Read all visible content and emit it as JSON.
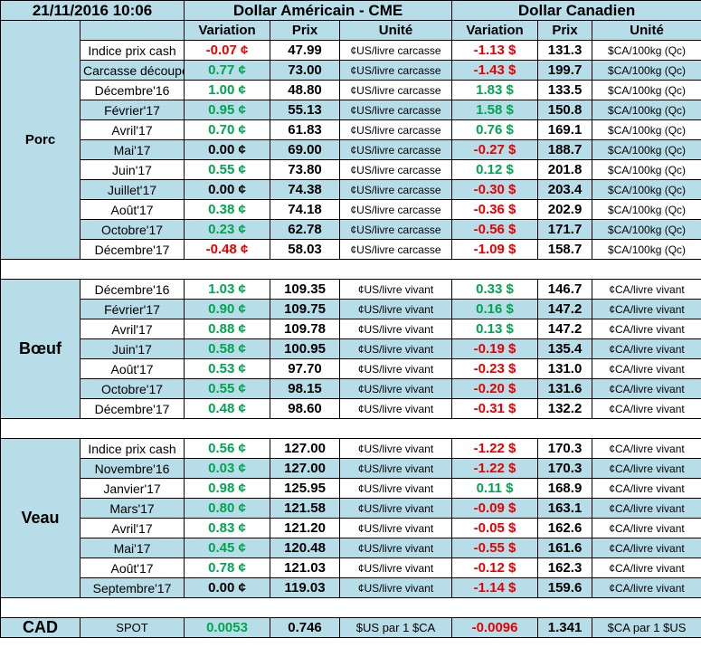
{
  "header": {
    "date": "21/11/2016 10:06",
    "us_title": "Dollar Américain - CME",
    "ca_title": "Dollar Canadien",
    "col_variation": "Variation",
    "col_prix": "Prix",
    "col_unite": "Unité"
  },
  "colors": {
    "band": "#b7dde8",
    "positive": "#00a550",
    "negative": "#e60000"
  },
  "groups": [
    {
      "name": "Porc",
      "rows": [
        {
          "label": "Indice prix cash",
          "us_var": "-0.07 ¢",
          "us_price": "47.99",
          "us_unit": "¢US/livre carcasse",
          "ca_var": "-1.13 $",
          "ca_price": "131.3",
          "ca_unit": "$CA/100kg (Qc)"
        },
        {
          "label": "Carcasse découpée",
          "us_var": "0.77 ¢",
          "us_price": "73.00",
          "us_unit": "¢US/livre carcasse",
          "ca_var": "-1.43 $",
          "ca_price": "199.7",
          "ca_unit": "$CA/100kg (Qc)"
        },
        {
          "label": "Décembre'16",
          "us_var": "1.00 ¢",
          "us_price": "48.80",
          "us_unit": "¢US/livre carcasse",
          "ca_var": "1.83 $",
          "ca_price": "133.5",
          "ca_unit": "$CA/100kg (Qc)"
        },
        {
          "label": "Février'17",
          "us_var": "0.95 ¢",
          "us_price": "55.13",
          "us_unit": "¢US/livre carcasse",
          "ca_var": "1.58 $",
          "ca_price": "150.8",
          "ca_unit": "$CA/100kg (Qc)"
        },
        {
          "label": "Avril'17",
          "us_var": "0.70 ¢",
          "us_price": "61.83",
          "us_unit": "¢US/livre carcasse",
          "ca_var": "0.76 $",
          "ca_price": "169.1",
          "ca_unit": "$CA/100kg (Qc)"
        },
        {
          "label": "Mai'17",
          "us_var": "0.00 ¢",
          "us_price": "69.00",
          "us_unit": "¢US/livre carcasse",
          "ca_var": "-0.27 $",
          "ca_price": "188.7",
          "ca_unit": "$CA/100kg (Qc)"
        },
        {
          "label": "Juin'17",
          "us_var": "0.55 ¢",
          "us_price": "73.80",
          "us_unit": "¢US/livre carcasse",
          "ca_var": "0.12 $",
          "ca_price": "201.8",
          "ca_unit": "$CA/100kg (Qc)"
        },
        {
          "label": "Juillet'17",
          "us_var": "0.00 ¢",
          "us_price": "74.38",
          "us_unit": "¢US/livre carcasse",
          "ca_var": "-0.30 $",
          "ca_price": "203.4",
          "ca_unit": "$CA/100kg (Qc)"
        },
        {
          "label": "Août'17",
          "us_var": "0.38 ¢",
          "us_price": "74.18",
          "us_unit": "¢US/livre carcasse",
          "ca_var": "-0.36 $",
          "ca_price": "202.9",
          "ca_unit": "$CA/100kg (Qc)"
        },
        {
          "label": "Octobre'17",
          "us_var": "0.23 ¢",
          "us_price": "62.78",
          "us_unit": "¢US/livre carcasse",
          "ca_var": "-0.56 $",
          "ca_price": "171.7",
          "ca_unit": "$CA/100kg (Qc)"
        },
        {
          "label": "Décembre'17",
          "us_var": "-0.48 ¢",
          "us_price": "58.03",
          "us_unit": "¢US/livre carcasse",
          "ca_var": "-1.09 $",
          "ca_price": "158.7",
          "ca_unit": "$CA/100kg (Qc)"
        }
      ]
    },
    {
      "name": "Bœuf",
      "rows": [
        {
          "label": "Décembre'16",
          "us_var": "1.03 ¢",
          "us_price": "109.35",
          "us_unit": "¢US/livre vivant",
          "ca_var": "0.33 $",
          "ca_price": "146.7",
          "ca_unit": "¢CA/livre vivant"
        },
        {
          "label": "Février'17",
          "us_var": "0.90 ¢",
          "us_price": "109.75",
          "us_unit": "¢US/livre vivant",
          "ca_var": "0.16 $",
          "ca_price": "147.2",
          "ca_unit": "¢CA/livre vivant"
        },
        {
          "label": "Avril'17",
          "us_var": "0.88 ¢",
          "us_price": "109.78",
          "us_unit": "¢US/livre vivant",
          "ca_var": "0.13 $",
          "ca_price": "147.2",
          "ca_unit": "¢CA/livre vivant"
        },
        {
          "label": "Juin'17",
          "us_var": "0.58 ¢",
          "us_price": "100.95",
          "us_unit": "¢US/livre vivant",
          "ca_var": "-0.19 $",
          "ca_price": "135.4",
          "ca_unit": "¢CA/livre vivant"
        },
        {
          "label": "Août'17",
          "us_var": "0.53 ¢",
          "us_price": "97.70",
          "us_unit": "¢US/livre vivant",
          "ca_var": "-0.23 $",
          "ca_price": "131.0",
          "ca_unit": "¢CA/livre vivant"
        },
        {
          "label": "Octobre'17",
          "us_var": "0.55 ¢",
          "us_price": "98.15",
          "us_unit": "¢US/livre vivant",
          "ca_var": "-0.20 $",
          "ca_price": "131.6",
          "ca_unit": "¢CA/livre vivant"
        },
        {
          "label": "Décembre'17",
          "us_var": "0.48 ¢",
          "us_price": "98.60",
          "us_unit": "¢US/livre vivant",
          "ca_var": "-0.31 $",
          "ca_price": "132.2",
          "ca_unit": "¢CA/livre vivant"
        }
      ]
    },
    {
      "name": "Veau",
      "rows": [
        {
          "label": "Indice prix cash",
          "us_var": "0.56 ¢",
          "us_price": "127.00",
          "us_unit": "¢US/livre vivant",
          "ca_var": "-1.22 $",
          "ca_price": "170.3",
          "ca_unit": "¢CA/livre vivant"
        },
        {
          "label": "Novembre'16",
          "us_var": "0.03 ¢",
          "us_price": "127.00",
          "us_unit": "¢US/livre vivant",
          "ca_var": "-1.22 $",
          "ca_price": "170.3",
          "ca_unit": "¢CA/livre vivant"
        },
        {
          "label": "Janvier'17",
          "us_var": "0.98 ¢",
          "us_price": "125.95",
          "us_unit": "¢US/livre vivant",
          "ca_var": "0.11 $",
          "ca_price": "168.9",
          "ca_unit": "¢CA/livre vivant"
        },
        {
          "label": "Mars'17",
          "us_var": "0.80 ¢",
          "us_price": "121.58",
          "us_unit": "¢US/livre vivant",
          "ca_var": "-0.09 $",
          "ca_price": "163.1",
          "ca_unit": "¢CA/livre vivant"
        },
        {
          "label": "Avril'17",
          "us_var": "0.83 ¢",
          "us_price": "121.20",
          "us_unit": "¢US/livre vivant",
          "ca_var": "-0.05 $",
          "ca_price": "162.6",
          "ca_unit": "¢CA/livre vivant"
        },
        {
          "label": "Mai'17",
          "us_var": "0.45 ¢",
          "us_price": "120.48",
          "us_unit": "¢US/livre vivant",
          "ca_var": "-0.55 $",
          "ca_price": "161.6",
          "ca_unit": "¢CA/livre vivant"
        },
        {
          "label": "Août'17",
          "us_var": "0.78 ¢",
          "us_price": "121.03",
          "us_unit": "¢US/livre vivant",
          "ca_var": "-0.12 $",
          "ca_price": "162.3",
          "ca_unit": "¢CA/livre vivant"
        },
        {
          "label": "Septembre'17",
          "us_var": "0.00 ¢",
          "us_price": "119.03",
          "us_unit": "¢US/livre vivant",
          "ca_var": "-1.14 $",
          "ca_price": "159.6",
          "ca_unit": "¢CA/livre vivant"
        }
      ]
    }
  ],
  "cad": {
    "name": "CAD",
    "label": "SPOT",
    "us_var": "0.0053",
    "us_price": "0.746",
    "us_unit": "$US par 1 $CA",
    "ca_var": "-0.0096",
    "ca_price": "1.341",
    "ca_unit": "$CA par 1 $US"
  }
}
